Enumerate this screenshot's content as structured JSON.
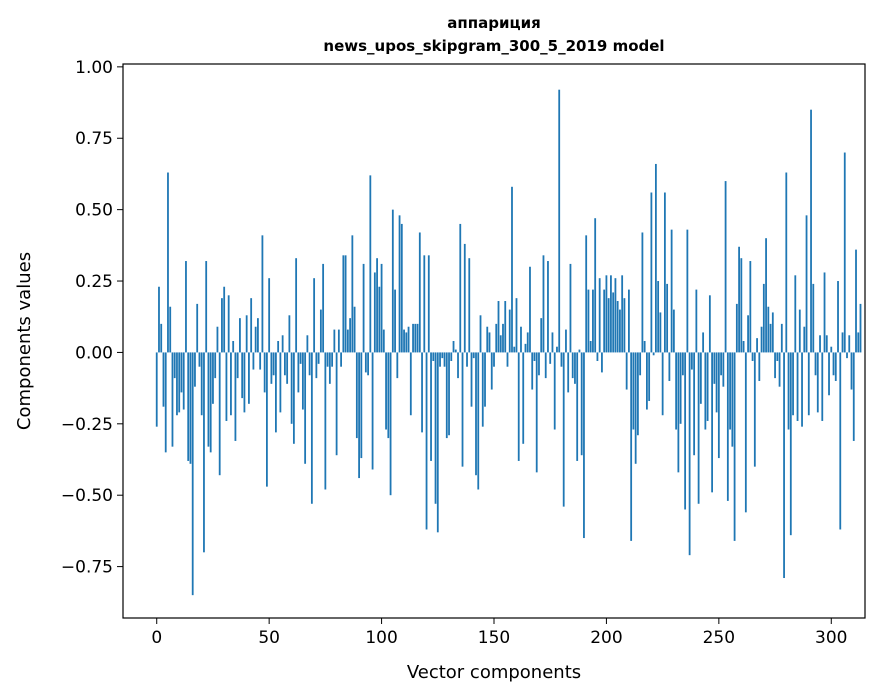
{
  "chart_data": {
    "type": "bar",
    "title_line1": "аппариция",
    "title_line2": "news_upos_skipgram_300_5_2019 model",
    "xlabel": "Vector components",
    "ylabel": "Components values",
    "xlim": [
      -15,
      315
    ],
    "ylim": [
      -0.93,
      1.01
    ],
    "xticks": [
      0,
      50,
      100,
      150,
      200,
      250,
      300
    ],
    "xtick_labels": [
      "0",
      "50",
      "100",
      "150",
      "200",
      "250",
      "300"
    ],
    "yticks": [
      -0.75,
      -0.5,
      -0.25,
      0.0,
      0.25,
      0.5,
      0.75,
      1.0
    ],
    "ytick_labels": [
      "−0.75",
      "−0.50",
      "−0.25",
      "0.00",
      "0.25",
      "0.50",
      "0.75",
      "1.00"
    ],
    "bar_color": "#1f77b4",
    "grid": false,
    "values": [
      -0.26,
      0.23,
      0.1,
      -0.19,
      -0.35,
      0.63,
      0.16,
      -0.33,
      -0.09,
      -0.22,
      -0.21,
      -0.14,
      -0.2,
      0.32,
      -0.38,
      -0.39,
      -0.85,
      -0.12,
      0.17,
      -0.05,
      -0.22,
      -0.7,
      0.32,
      -0.33,
      -0.35,
      -0.18,
      -0.09,
      0.09,
      -0.43,
      0.19,
      0.23,
      -0.24,
      0.2,
      -0.22,
      0.04,
      -0.31,
      -0.09,
      0.12,
      -0.16,
      -0.21,
      0.13,
      -0.18,
      0.19,
      -0.06,
      0.09,
      0.12,
      -0.06,
      0.41,
      -0.14,
      -0.47,
      0.26,
      -0.11,
      -0.08,
      -0.28,
      0.04,
      -0.21,
      0.06,
      -0.08,
      -0.11,
      0.13,
      -0.25,
      -0.32,
      0.33,
      -0.14,
      -0.04,
      -0.2,
      -0.39,
      0.06,
      -0.08,
      -0.53,
      0.26,
      -0.09,
      -0.04,
      0.15,
      0.31,
      -0.48,
      -0.05,
      -0.11,
      -0.05,
      0.08,
      -0.36,
      0.08,
      -0.05,
      0.34,
      0.34,
      0.08,
      0.12,
      0.41,
      0.16,
      -0.3,
      -0.44,
      -0.37,
      0.31,
      -0.07,
      -0.08,
      0.62,
      -0.41,
      0.28,
      0.33,
      0.23,
      0.31,
      0.08,
      -0.27,
      -0.3,
      -0.5,
      0.5,
      0.22,
      -0.09,
      0.48,
      0.45,
      0.08,
      0.07,
      0.09,
      -0.22,
      0.1,
      0.1,
      0.1,
      0.42,
      -0.28,
      0.34,
      -0.62,
      0.34,
      -0.38,
      -0.03,
      -0.53,
      -0.63,
      -0.05,
      -0.02,
      -0.05,
      -0.3,
      -0.29,
      -0.03,
      0.04,
      0.01,
      -0.09,
      0.45,
      -0.4,
      0.38,
      -0.05,
      0.33,
      -0.19,
      -0.02,
      -0.43,
      -0.48,
      0.13,
      -0.26,
      -0.19,
      0.09,
      0.07,
      -0.13,
      -0.05,
      0.1,
      0.18,
      0.06,
      0.1,
      0.18,
      -0.05,
      0.15,
      0.58,
      0.02,
      0.19,
      -0.38,
      0.09,
      -0.32,
      0.03,
      0.07,
      0.3,
      -0.13,
      -0.03,
      -0.42,
      -0.08,
      0.12,
      0.34,
      -0.09,
      0.32,
      -0.04,
      0.07,
      -0.27,
      0.02,
      0.92,
      -0.05,
      -0.54,
      0.08,
      -0.14,
      0.31,
      -0.09,
      -0.11,
      -0.38,
      0.01,
      -0.36,
      -0.65,
      0.41,
      0.22,
      0.04,
      0.22,
      0.47,
      -0.03,
      0.26,
      -0.07,
      0.22,
      0.27,
      0.19,
      0.27,
      0.21,
      0.26,
      0.18,
      0.15,
      0.27,
      0.19,
      -0.13,
      0.22,
      -0.66,
      -0.27,
      -0.39,
      -0.29,
      -0.08,
      0.42,
      0.04,
      -0.2,
      -0.17,
      0.56,
      -0.01,
      0.66,
      0.25,
      0.14,
      -0.22,
      0.56,
      0.24,
      -0.1,
      0.43,
      0.15,
      -0.27,
      -0.42,
      -0.25,
      -0.08,
      -0.55,
      0.43,
      -0.71,
      -0.06,
      -0.36,
      0.22,
      -0.53,
      -0.18,
      0.07,
      -0.27,
      -0.24,
      0.2,
      -0.49,
      -0.11,
      -0.21,
      -0.37,
      -0.08,
      -0.12,
      0.6,
      -0.52,
      -0.27,
      -0.33,
      -0.66,
      0.17,
      0.37,
      0.33,
      0.04,
      -0.56,
      0.13,
      0.32,
      -0.03,
      -0.4,
      0.05,
      -0.1,
      0.09,
      0.24,
      0.4,
      0.16,
      0.1,
      0.14,
      -0.09,
      -0.03,
      -0.12,
      0.1,
      -0.79,
      0.63,
      -0.27,
      -0.64,
      -0.22,
      0.27,
      -0.24,
      0.15,
      -0.26,
      0.09,
      0.48,
      -0.22,
      0.85,
      0.24,
      -0.08,
      -0.21,
      0.06,
      -0.24,
      0.28,
      0.06,
      -0.15,
      0.02,
      -0.08,
      -0.1,
      0.25,
      -0.62,
      0.07,
      0.7,
      -0.02,
      0.06,
      -0.13,
      -0.31,
      0.36,
      0.07,
      0.17
    ]
  }
}
